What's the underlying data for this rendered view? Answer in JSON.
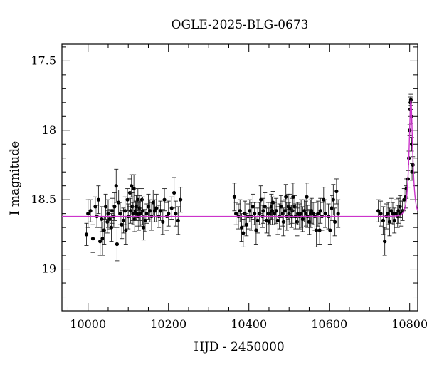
{
  "chart_data": {
    "type": "scatter",
    "title": "OGLE-2025-BLG-0673",
    "xlabel": "HJD - 2450000",
    "ylabel": "I magnitude",
    "xlim": [
      9935,
      10820
    ],
    "ylim": [
      19.3,
      17.38
    ],
    "y_inverted": true,
    "grid": false,
    "x_major_ticks": [
      10000,
      10200,
      10400,
      10600,
      10800
    ],
    "x_tick_labels": [
      "10000",
      "10200",
      "10400",
      "10600",
      "10800"
    ],
    "y_major_ticks": [
      17.5,
      18,
      18.5,
      19
    ],
    "y_tick_labels": [
      "17.5",
      "18",
      "18.5",
      "19"
    ],
    "model_color": "#cc33cc",
    "point_color": "#000000",
    "model": {
      "baseline": 18.62,
      "t0": 10803,
      "peak": 17.78,
      "tE_days": 7.5
    },
    "series": [
      {
        "points": [
          [
            9996,
            18.75,
            0.08
          ],
          [
            10000,
            18.6,
            0.1
          ],
          [
            10006,
            18.58,
            0.08
          ],
          [
            10012,
            18.78,
            0.1
          ],
          [
            10018,
            18.55,
            0.07
          ],
          [
            10022,
            18.62,
            0.08
          ],
          [
            10026,
            18.5,
            0.1
          ],
          [
            10030,
            18.8,
            0.1
          ],
          [
            10034,
            18.64,
            0.09
          ],
          [
            10036,
            18.78,
            0.12
          ],
          [
            10040,
            18.72,
            0.1
          ],
          [
            10044,
            18.55,
            0.09
          ],
          [
            10048,
            18.66,
            0.08
          ],
          [
            10050,
            18.6,
            0.1
          ],
          [
            10054,
            18.64,
            0.07
          ],
          [
            10058,
            18.7,
            0.1
          ],
          [
            10060,
            18.58,
            0.09
          ],
          [
            10064,
            18.62,
            0.08
          ],
          [
            10066,
            18.55,
            0.1
          ],
          [
            10070,
            18.4,
            0.12
          ],
          [
            10072,
            18.82,
            0.12
          ],
          [
            10076,
            18.52,
            0.09
          ],
          [
            10080,
            18.6,
            0.08
          ],
          [
            10084,
            18.68,
            0.1
          ],
          [
            10088,
            18.65,
            0.09
          ],
          [
            10092,
            18.58,
            0.1
          ],
          [
            10094,
            18.72,
            0.1
          ],
          [
            10098,
            18.5,
            0.08
          ],
          [
            10100,
            18.62,
            0.09
          ],
          [
            10104,
            18.45,
            0.1
          ],
          [
            10106,
            18.58,
            0.09
          ],
          [
            10108,
            18.4,
            0.08
          ],
          [
            10110,
            18.55,
            0.1
          ],
          [
            10112,
            18.6,
            0.08
          ],
          [
            10114,
            18.42,
            0.1
          ],
          [
            10116,
            18.64,
            0.09
          ],
          [
            10118,
            18.58,
            0.07
          ],
          [
            10120,
            18.55,
            0.08
          ],
          [
            10122,
            18.6,
            0.09
          ],
          [
            10124,
            18.5,
            0.08
          ],
          [
            10126,
            18.62,
            0.1
          ],
          [
            10128,
            18.56,
            0.09
          ],
          [
            10130,
            18.6,
            0.09
          ],
          [
            10134,
            18.5,
            0.08
          ],
          [
            10136,
            18.58,
            0.1
          ],
          [
            10138,
            18.7,
            0.09
          ],
          [
            10142,
            18.65,
            0.08
          ],
          [
            10146,
            18.6,
            0.07
          ],
          [
            10150,
            18.55,
            0.09
          ],
          [
            10154,
            18.58,
            0.08
          ],
          [
            10158,
            18.62,
            0.1
          ],
          [
            10162,
            18.52,
            0.09
          ],
          [
            10166,
            18.58,
            0.08
          ],
          [
            10170,
            18.56,
            0.1
          ],
          [
            10176,
            18.62,
            0.08
          ],
          [
            10180,
            18.58,
            0.07
          ],
          [
            10186,
            18.66,
            0.09
          ],
          [
            10190,
            18.5,
            0.08
          ],
          [
            10196,
            18.62,
            0.1
          ],
          [
            10200,
            18.6,
            0.09
          ],
          [
            10208,
            18.56,
            0.08
          ],
          [
            10214,
            18.45,
            0.11
          ],
          [
            10218,
            18.6,
            0.09
          ],
          [
            10224,
            18.65,
            0.1
          ],
          [
            10230,
            18.5,
            0.09
          ],
          [
            10364,
            18.48,
            0.1
          ],
          [
            10368,
            18.6,
            0.08
          ],
          [
            10374,
            18.62,
            0.09
          ],
          [
            10378,
            18.58,
            0.08
          ],
          [
            10382,
            18.7,
            0.1
          ],
          [
            10386,
            18.74,
            0.1
          ],
          [
            10390,
            18.6,
            0.09
          ],
          [
            10394,
            18.68,
            0.08
          ],
          [
            10398,
            18.62,
            0.09
          ],
          [
            10402,
            18.58,
            0.08
          ],
          [
            10406,
            18.62,
            0.1
          ],
          [
            10410,
            18.55,
            0.09
          ],
          [
            10414,
            18.6,
            0.08
          ],
          [
            10418,
            18.72,
            0.1
          ],
          [
            10422,
            18.65,
            0.09
          ],
          [
            10426,
            18.6,
            0.08
          ],
          [
            10430,
            18.5,
            0.1
          ],
          [
            10434,
            18.62,
            0.08
          ],
          [
            10436,
            18.58,
            0.09
          ],
          [
            10440,
            18.55,
            0.1
          ],
          [
            10444,
            18.65,
            0.09
          ],
          [
            10448,
            18.6,
            0.08
          ],
          [
            10450,
            18.66,
            0.1
          ],
          [
            10454,
            18.6,
            0.08
          ],
          [
            10456,
            18.55,
            0.09
          ],
          [
            10458,
            18.58,
            0.1
          ],
          [
            10460,
            18.52,
            0.08
          ],
          [
            10464,
            18.6,
            0.08
          ],
          [
            10468,
            18.58,
            0.09
          ],
          [
            10472,
            18.65,
            0.1
          ],
          [
            10476,
            18.62,
            0.09
          ],
          [
            10480,
            18.55,
            0.08
          ],
          [
            10484,
            18.6,
            0.09
          ],
          [
            10486,
            18.66,
            0.1
          ],
          [
            10490,
            18.58,
            0.08
          ],
          [
            10492,
            18.48,
            0.09
          ],
          [
            10494,
            18.62,
            0.1
          ],
          [
            10498,
            18.55,
            0.09
          ],
          [
            10500,
            18.6,
            0.08
          ],
          [
            10502,
            18.56,
            0.1
          ],
          [
            10506,
            18.62,
            0.08
          ],
          [
            10508,
            18.58,
            0.09
          ],
          [
            10510,
            18.48,
            0.1
          ],
          [
            10514,
            18.55,
            0.08
          ],
          [
            10516,
            18.62,
            0.09
          ],
          [
            10520,
            18.66,
            0.1
          ],
          [
            10522,
            18.6,
            0.08
          ],
          [
            10526,
            18.62,
            0.09
          ],
          [
            10530,
            18.6,
            0.1
          ],
          [
            10534,
            18.64,
            0.09
          ],
          [
            10538,
            18.58,
            0.08
          ],
          [
            10542,
            18.6,
            0.09
          ],
          [
            10544,
            18.48,
            0.1
          ],
          [
            10546,
            18.62,
            0.08
          ],
          [
            10550,
            18.66,
            0.09
          ],
          [
            10554,
            18.6,
            0.1
          ],
          [
            10556,
            18.58,
            0.09
          ],
          [
            10560,
            18.6,
            0.08
          ],
          [
            10564,
            18.62,
            0.1
          ],
          [
            10568,
            18.72,
            0.12
          ],
          [
            10572,
            18.6,
            0.09
          ],
          [
            10576,
            18.72,
            0.1
          ],
          [
            10578,
            18.58,
            0.09
          ],
          [
            10582,
            18.62,
            0.1
          ],
          [
            10586,
            18.5,
            0.09
          ],
          [
            10590,
            18.6,
            0.1
          ],
          [
            10598,
            18.62,
            0.09
          ],
          [
            10602,
            18.72,
            0.1
          ],
          [
            10606,
            18.56,
            0.09
          ],
          [
            10610,
            18.5,
            0.11
          ],
          [
            10614,
            18.66,
            0.1
          ],
          [
            10618,
            18.44,
            0.09
          ],
          [
            10622,
            18.6,
            0.1
          ],
          [
            10722,
            18.58,
            0.08
          ],
          [
            10728,
            18.6,
            0.09
          ],
          [
            10734,
            18.65,
            0.1
          ],
          [
            10738,
            18.8,
            0.1
          ],
          [
            10742,
            18.62,
            0.09
          ],
          [
            10746,
            18.6,
            0.08
          ],
          [
            10750,
            18.66,
            0.1
          ],
          [
            10754,
            18.58,
            0.09
          ],
          [
            10758,
            18.6,
            0.08
          ],
          [
            10762,
            18.65,
            0.09
          ],
          [
            10766,
            18.6,
            0.1
          ],
          [
            10770,
            18.62,
            0.08
          ],
          [
            10772,
            18.58,
            0.09
          ],
          [
            10776,
            18.55,
            0.08
          ],
          [
            10778,
            18.6,
            0.09
          ],
          [
            10782,
            18.58,
            0.07
          ],
          [
            10786,
            18.5,
            0.08
          ],
          [
            10790,
            18.48,
            0.08
          ],
          [
            10792,
            18.42,
            0.07
          ],
          [
            10796,
            18.35,
            0.06
          ],
          [
            10798,
            18.2,
            0.05
          ],
          [
            10800,
            18.0,
            0.04
          ],
          [
            10801,
            17.85,
            0.05
          ],
          [
            10802,
            17.8,
            0.04
          ],
          [
            10803,
            17.78,
            0.04
          ],
          [
            10804,
            17.9,
            0.05
          ],
          [
            10805,
            18.1,
            0.05
          ],
          [
            10806,
            18.3,
            0.06
          ],
          [
            10808,
            18.25,
            0.06
          ]
        ]
      }
    ]
  }
}
